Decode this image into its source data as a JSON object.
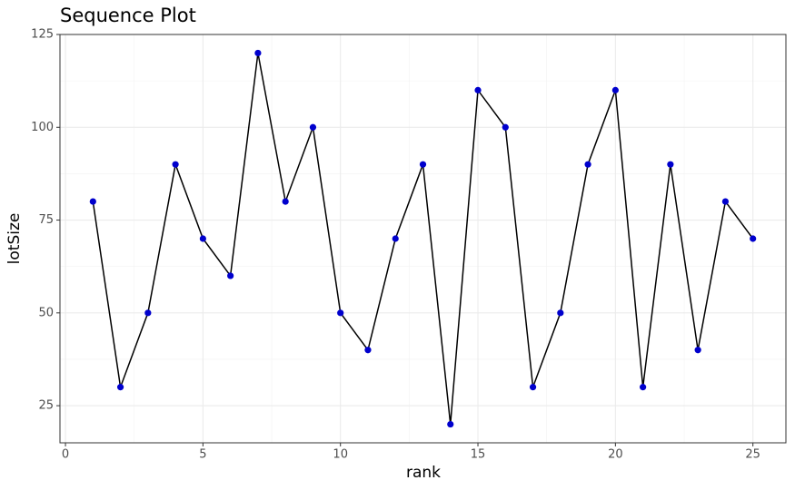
{
  "chart_data": {
    "type": "line",
    "title": "Sequence Plot",
    "x_label": "rank",
    "y_label": "lotSize",
    "x": [
      1,
      2,
      3,
      4,
      5,
      6,
      7,
      8,
      9,
      10,
      11,
      12,
      13,
      14,
      15,
      16,
      17,
      18,
      19,
      20,
      21,
      22,
      23,
      24,
      25
    ],
    "series": [
      {
        "name": "lotSize",
        "line_color": "#000000",
        "color": "#0000cd",
        "values": [
          80,
          30,
          50,
          90,
          70,
          60,
          120,
          80,
          100,
          50,
          40,
          70,
          90,
          20,
          110,
          100,
          30,
          50,
          90,
          110,
          30,
          90,
          40,
          80,
          70
        ]
      }
    ],
    "xlim": [
      -0.2,
      26.2
    ],
    "xticks": [
      0,
      5,
      10,
      15,
      20,
      25
    ],
    "ylim": [
      15,
      125
    ],
    "yticks": [
      25,
      50,
      75,
      100,
      125
    ],
    "grid": true
  }
}
